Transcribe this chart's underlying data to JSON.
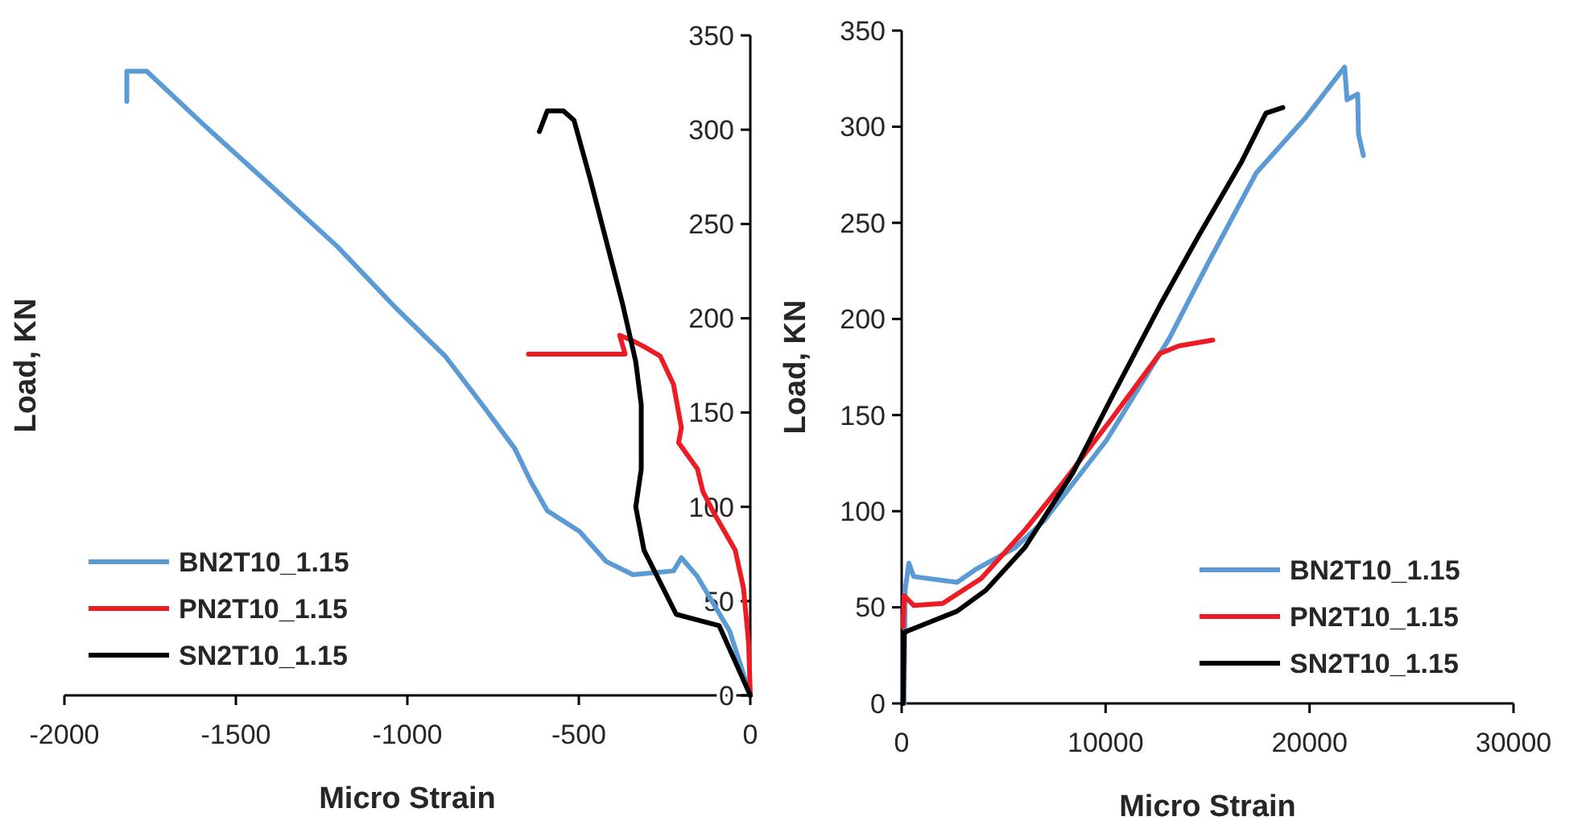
{
  "chart_data": [
    {
      "type": "line",
      "xlabel": "Micro Strain",
      "ylabel": "Load, KN",
      "xlim": [
        -2000,
        0
      ],
      "ylim": [
        0,
        350
      ],
      "xticks": [
        -2000,
        -1500,
        -1000,
        -500,
        0
      ],
      "yticks": [
        0,
        50,
        100,
        150,
        200,
        250,
        300,
        350
      ],
      "grid": false,
      "legend": "bottom left",
      "series": [
        {
          "name": "BN2T10_1.15",
          "color": "#5b9bd5",
          "x": [
            0,
            -60,
            -154,
            -201,
            -224,
            -342,
            -420,
            -498,
            -592,
            -639,
            -687,
            -781,
            -890,
            -1031,
            -1204,
            -1408,
            -1596,
            -1760,
            -1818,
            -1818
          ],
          "values": [
            0,
            34,
            63,
            73,
            66,
            64,
            71,
            87,
            98,
            113,
            131,
            154,
            180,
            205,
            238,
            272,
            303,
            331,
            331,
            315
          ]
        },
        {
          "name": "PN2T10_1.15",
          "color": "#ed1c24",
          "x": [
            0,
            -5,
            -20,
            -44,
            -107,
            -138,
            -154,
            -209,
            -201,
            -224,
            -263,
            -310,
            -342,
            -381,
            -365,
            -647
          ],
          "values": [
            0,
            28,
            57,
            77,
            97,
            108,
            120,
            134,
            142,
            165,
            180,
            185,
            188,
            191,
            181,
            181
          ]
        },
        {
          "name": "SN2T10_1.15",
          "color": "#000000",
          "x": [
            0,
            -91,
            -216,
            -263,
            -310,
            -334,
            -318,
            -318,
            -334,
            -373,
            -467,
            -514,
            -545,
            -592,
            -615
          ],
          "values": [
            0,
            37,
            43,
            60,
            77,
            100,
            120,
            154,
            177,
            208,
            274,
            305,
            310,
            310,
            299
          ]
        }
      ]
    },
    {
      "type": "line",
      "xlabel": "Micro Strain",
      "ylabel": "Load, KN",
      "xlim": [
        0,
        30000
      ],
      "ylim": [
        0,
        350
      ],
      "xticks": [
        0,
        10000,
        20000,
        30000
      ],
      "yticks": [
        0,
        50,
        100,
        150,
        200,
        250,
        300,
        350
      ],
      "grid": false,
      "legend": "bottom right",
      "series": [
        {
          "name": "BN2T10_1.15",
          "color": "#5b9bd5",
          "x": [
            120,
            170,
            355,
            590,
            2720,
            3670,
            5560,
            6980,
            10050,
            13130,
            15020,
            17390,
            19750,
            21720,
            21840,
            22360,
            22400,
            22640
          ],
          "values": [
            0,
            59,
            73,
            66,
            63,
            70,
            81,
            95,
            137,
            190,
            229,
            276,
            304,
            331,
            314,
            317,
            296,
            285
          ]
        },
        {
          "name": "PN2T10_1.15",
          "color": "#ed1c24",
          "x": [
            70,
            120,
            590,
            2010,
            3900,
            6030,
            7920,
            10290,
            12660,
            13600,
            15260
          ],
          "values": [
            40,
            56,
            51,
            52,
            65,
            90,
            115,
            148,
            182,
            186,
            189
          ]
        },
        {
          "name": "SN2T10_1.15",
          "color": "#000000",
          "x": [
            70,
            120,
            830,
            2720,
            4140,
            6030,
            8400,
            10290,
            12660,
            14550,
            16680,
            17860,
            18690
          ],
          "values": [
            0,
            37,
            40,
            48,
            59,
            81,
            120,
            159,
            207,
            243,
            282,
            307,
            310
          ]
        }
      ]
    }
  ]
}
